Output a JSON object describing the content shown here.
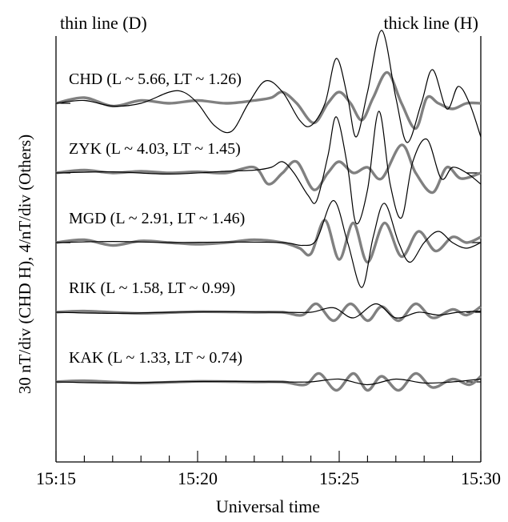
{
  "chart_data": {
    "type": "line",
    "legend": {
      "left_label": "thin line (D)",
      "right_label": "thick line (H)"
    },
    "xlabel": "Universal time",
    "ylabel": "30 nT/div (CHD H), 4/nT/div (Others)",
    "x_ticks": [
      "15:15",
      "15:20",
      "15:25",
      "15:30"
    ],
    "xlim": [
      "15:15",
      "15:30"
    ],
    "style": {
      "thin_color": "#000000",
      "thick_color": "#808080"
    },
    "stations": [
      {
        "label": "CHD (L ~ 5.66, LT ~ 1.26)",
        "baseline_div": 1,
        "thin_line": [
          [
            "15:15",
            0.0
          ],
          [
            "15:16",
            0.05
          ],
          [
            "15:17",
            -0.05
          ],
          [
            "15:18",
            0.0
          ],
          [
            "15:19",
            0.2
          ],
          [
            "15:19.5",
            0.2
          ],
          [
            "15:20",
            0.0
          ],
          [
            "15:20.6",
            -0.4
          ],
          [
            "15:21.2",
            -0.5
          ],
          [
            "15:21.8",
            0.0
          ],
          [
            "15:22.4",
            0.4
          ],
          [
            "15:23",
            0.2
          ],
          [
            "15:23.6",
            -0.3
          ],
          [
            "15:24.0",
            -0.4
          ],
          [
            "15:24.5",
            0.0
          ],
          [
            "15:24.9",
            0.8
          ],
          [
            "15:25.3",
            0.1
          ],
          [
            "15:25.6",
            -0.6
          ],
          [
            "15:26.0",
            0.2
          ],
          [
            "15:26.5",
            1.3
          ],
          [
            "15:27.0",
            0.1
          ],
          [
            "15:27.4",
            -0.7
          ],
          [
            "15:27.9",
            0.0
          ],
          [
            "15:28.3",
            0.6
          ],
          [
            "15:28.8",
            -0.1
          ],
          [
            "15:29.2",
            0.3
          ],
          [
            "15:29.6",
            0.0
          ],
          [
            "15:30",
            -0.6
          ]
        ],
        "thick_line": [
          [
            "15:15",
            0.0
          ],
          [
            "15:16",
            0.1
          ],
          [
            "15:17",
            -0.05
          ],
          [
            "15:18",
            0.05
          ],
          [
            "15:19",
            0.0
          ],
          [
            "15:20",
            0.05
          ],
          [
            "15:21",
            0.0
          ],
          [
            "15:22",
            0.05
          ],
          [
            "15:22.6",
            0.1
          ],
          [
            "15:23.0",
            0.2
          ],
          [
            "15:23.5",
            0.0
          ],
          [
            "15:24.1",
            -0.35
          ],
          [
            "15:24.6",
            0.0
          ],
          [
            "15:25.0",
            0.2
          ],
          [
            "15:25.4",
            0.0
          ],
          [
            "15:25.8",
            -0.3
          ],
          [
            "15:26.2",
            0.1
          ],
          [
            "15:26.7",
            0.55
          ],
          [
            "15:27.2",
            0.0
          ],
          [
            "15:27.7",
            -0.45
          ],
          [
            "15:28.1",
            0.1
          ],
          [
            "15:28.5",
            0.0
          ],
          [
            "15:29.0",
            -0.1
          ],
          [
            "15:29.5",
            0.0
          ],
          [
            "15:30",
            0.0
          ]
        ]
      },
      {
        "label": "ZYK (L ~ 4.03, LT ~ 1.45)",
        "baseline_div": 2,
        "thin_line": [
          [
            "15:15",
            0.0
          ],
          [
            "15:17",
            0.02
          ],
          [
            "15:19",
            -0.02
          ],
          [
            "15:21",
            0.03
          ],
          [
            "15:22",
            0.05
          ],
          [
            "15:22.6",
            0.1
          ],
          [
            "15:23.0",
            0.2
          ],
          [
            "15:23.4",
            0.0
          ],
          [
            "15:23.9",
            -0.4
          ],
          [
            "15:24.2",
            -0.5
          ],
          [
            "15:24.6",
            0.3
          ],
          [
            "15:24.9",
            1.0
          ],
          [
            "15:25.3",
            0.1
          ],
          [
            "15:25.6",
            -0.9
          ],
          [
            "15:26.0",
            -0.3
          ],
          [
            "15:26.4",
            1.1
          ],
          [
            "15:26.8",
            -0.2
          ],
          [
            "15:27.2",
            -0.8
          ],
          [
            "15:27.6",
            0.2
          ],
          [
            "15:28.1",
            0.6
          ],
          [
            "15:28.6",
            -0.1
          ],
          [
            "15:29.0",
            0.1
          ],
          [
            "15:29.5",
            0.0
          ],
          [
            "15:30",
            -0.2
          ]
        ],
        "thick_line": [
          [
            "15:15",
            0.0
          ],
          [
            "15:16",
            0.05
          ],
          [
            "15:17",
            0.0
          ],
          [
            "15:18",
            0.03
          ],
          [
            "15:19",
            0.0
          ],
          [
            "15:20",
            0.02
          ],
          [
            "15:21",
            0.0
          ],
          [
            "15:22",
            0.1
          ],
          [
            "15:22.5",
            -0.2
          ],
          [
            "15:23.0",
            0.0
          ],
          [
            "15:23.5",
            0.2
          ],
          [
            "15:24.1",
            -0.3
          ],
          [
            "15:24.6",
            0.0
          ],
          [
            "15:25.0",
            0.2
          ],
          [
            "15:25.5",
            0.0
          ],
          [
            "15:26.0",
            0.1
          ],
          [
            "15:26.5",
            -0.1
          ],
          [
            "15:27.2",
            0.5
          ],
          [
            "15:27.7",
            0.0
          ],
          [
            "15:28.3",
            -0.35
          ],
          [
            "15:28.8",
            0.1
          ],
          [
            "15:29.3",
            -0.1
          ],
          [
            "15:30",
            0.0
          ]
        ]
      },
      {
        "label": "MGD (L ~ 2.91, LT ~ 1.46)",
        "baseline_div": 3,
        "thin_line": [
          [
            "15:15",
            0.0
          ],
          [
            "15:17",
            0.02
          ],
          [
            "15:19",
            0.0
          ],
          [
            "15:21",
            0.01
          ],
          [
            "15:23",
            0.0
          ],
          [
            "15:23.7",
            -0.05
          ],
          [
            "15:24.2",
            0.05
          ],
          [
            "15:24.8",
            0.75
          ],
          [
            "15:25.3",
            0.0
          ],
          [
            "15:25.8",
            -0.8
          ],
          [
            "15:26.2",
            0.1
          ],
          [
            "15:26.6",
            0.7
          ],
          [
            "15:27.1",
            0.0
          ],
          [
            "15:27.5",
            -0.35
          ],
          [
            "15:28.0",
            0.0
          ],
          [
            "15:28.5",
            0.2
          ],
          [
            "15:29.0",
            0.0
          ],
          [
            "15:29.5",
            -0.1
          ],
          [
            "15:30",
            0.0
          ]
        ],
        "thick_line": [
          [
            "15:15",
            0.0
          ],
          [
            "15:16",
            0.05
          ],
          [
            "15:17",
            -0.05
          ],
          [
            "15:18",
            0.03
          ],
          [
            "15:19",
            0.0
          ],
          [
            "15:20",
            -0.03
          ],
          [
            "15:21",
            0.0
          ],
          [
            "15:22",
            0.05
          ],
          [
            "15:23",
            0.0
          ],
          [
            "15:23.6",
            -0.1
          ],
          [
            "15:24.0",
            -0.2
          ],
          [
            "15:24.5",
            0.4
          ],
          [
            "15:25.0",
            -0.3
          ],
          [
            "15:25.5",
            0.35
          ],
          [
            "15:26.0",
            -0.35
          ],
          [
            "15:26.6",
            0.35
          ],
          [
            "15:27.2",
            -0.25
          ],
          [
            "15:27.8",
            0.2
          ],
          [
            "15:28.4",
            -0.15
          ],
          [
            "15:29.0",
            0.1
          ],
          [
            "15:29.5",
            0.0
          ],
          [
            "15:30",
            0.1
          ]
        ]
      },
      {
        "label": "RIK (L ~ 1.58, LT ~ 0.99)",
        "baseline_div": 4,
        "thin_line": [
          [
            "15:15",
            0.0
          ],
          [
            "15:17",
            -0.02
          ],
          [
            "15:19",
            0.0
          ],
          [
            "15:21",
            0.01
          ],
          [
            "15:23",
            0.0
          ],
          [
            "15:24",
            0.0
          ],
          [
            "15:24.8",
            0.08
          ],
          [
            "15:25.5",
            -0.1
          ],
          [
            "15:26.3",
            0.15
          ],
          [
            "15:27.0",
            -0.1
          ],
          [
            "15:27.8",
            0.0
          ],
          [
            "15:28.5",
            -0.05
          ],
          [
            "15:29.2",
            0.0
          ],
          [
            "15:30",
            0.02
          ]
        ],
        "thick_line": [
          [
            "15:15",
            0.0
          ],
          [
            "15:16",
            0.02
          ],
          [
            "15:18",
            -0.02
          ],
          [
            "15:20",
            0.01
          ],
          [
            "15:22",
            0.0
          ],
          [
            "15:23",
            0.0
          ],
          [
            "15:23.7",
            -0.05
          ],
          [
            "15:24.2",
            0.15
          ],
          [
            "15:24.8",
            -0.15
          ],
          [
            "15:25.4",
            0.15
          ],
          [
            "15:26.0",
            -0.15
          ],
          [
            "15:26.5",
            0.1
          ],
          [
            "15:27.1",
            -0.15
          ],
          [
            "15:27.7",
            0.15
          ],
          [
            "15:28.3",
            -0.1
          ],
          [
            "15:29.0",
            0.05
          ],
          [
            "15:29.5",
            -0.05
          ],
          [
            "15:30",
            0.1
          ]
        ]
      },
      {
        "label": "KAK (L ~ 1.33, LT ~ 0.74)",
        "baseline_div": 5,
        "thin_line": [
          [
            "15:15",
            0.0
          ],
          [
            "15:17",
            -0.02
          ],
          [
            "15:19",
            0.0
          ],
          [
            "15:21",
            0.01
          ],
          [
            "15:23",
            0.0
          ],
          [
            "15:24",
            0.0
          ],
          [
            "15:25",
            0.05
          ],
          [
            "15:26",
            -0.05
          ],
          [
            "15:27",
            0.05
          ],
          [
            "15:28",
            -0.02
          ],
          [
            "15:29",
            0.0
          ],
          [
            "15:30",
            0.05
          ]
        ],
        "thick_line": [
          [
            "15:15",
            0.0
          ],
          [
            "15:16",
            0.02
          ],
          [
            "15:18",
            -0.02
          ],
          [
            "15:20",
            0.01
          ],
          [
            "15:22",
            0.0
          ],
          [
            "15:23",
            0.0
          ],
          [
            "15:23.8",
            -0.05
          ],
          [
            "15:24.3",
            0.15
          ],
          [
            "15:24.9",
            -0.15
          ],
          [
            "15:25.5",
            0.15
          ],
          [
            "15:26.0",
            -0.15
          ],
          [
            "15:26.5",
            0.1
          ],
          [
            "15:27.1",
            -0.15
          ],
          [
            "15:27.7",
            0.15
          ],
          [
            "15:28.3",
            -0.1
          ],
          [
            "15:29.0",
            0.05
          ],
          [
            "15:29.6",
            -0.05
          ],
          [
            "15:30",
            0.1
          ]
        ]
      }
    ]
  }
}
